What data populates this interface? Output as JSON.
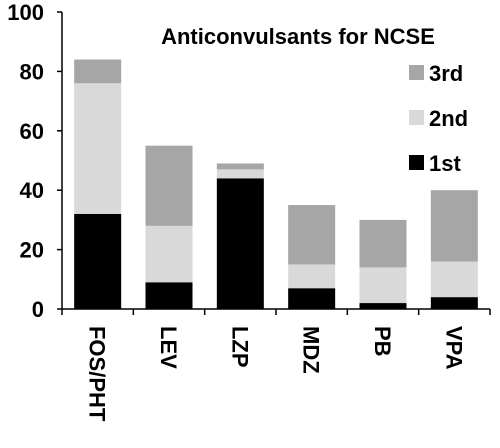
{
  "chart_data": {
    "type": "bar",
    "stacked": true,
    "title": "Anticonvulsants for NCSE",
    "xlabel": "",
    "ylabel": "",
    "ylim": [
      0,
      100
    ],
    "yticks": [
      0,
      20,
      40,
      60,
      80,
      100
    ],
    "grid": false,
    "legend_position": "top-right",
    "categories": [
      "FOS/PHT",
      "LEV",
      "LZP",
      "MDZ",
      "PB",
      "VPA"
    ],
    "series": [
      {
        "name": "1st",
        "color": "#000000",
        "values": [
          32,
          9,
          44,
          7,
          2,
          4
        ]
      },
      {
        "name": "2nd",
        "color": "#d9d9d9",
        "values": [
          44,
          19,
          3,
          8,
          12,
          12
        ]
      },
      {
        "name": "3rd",
        "color": "#a6a6a6",
        "values": [
          8,
          27,
          2,
          20,
          16,
          24
        ]
      }
    ],
    "legend_order": [
      "3rd",
      "2nd",
      "1st"
    ]
  }
}
